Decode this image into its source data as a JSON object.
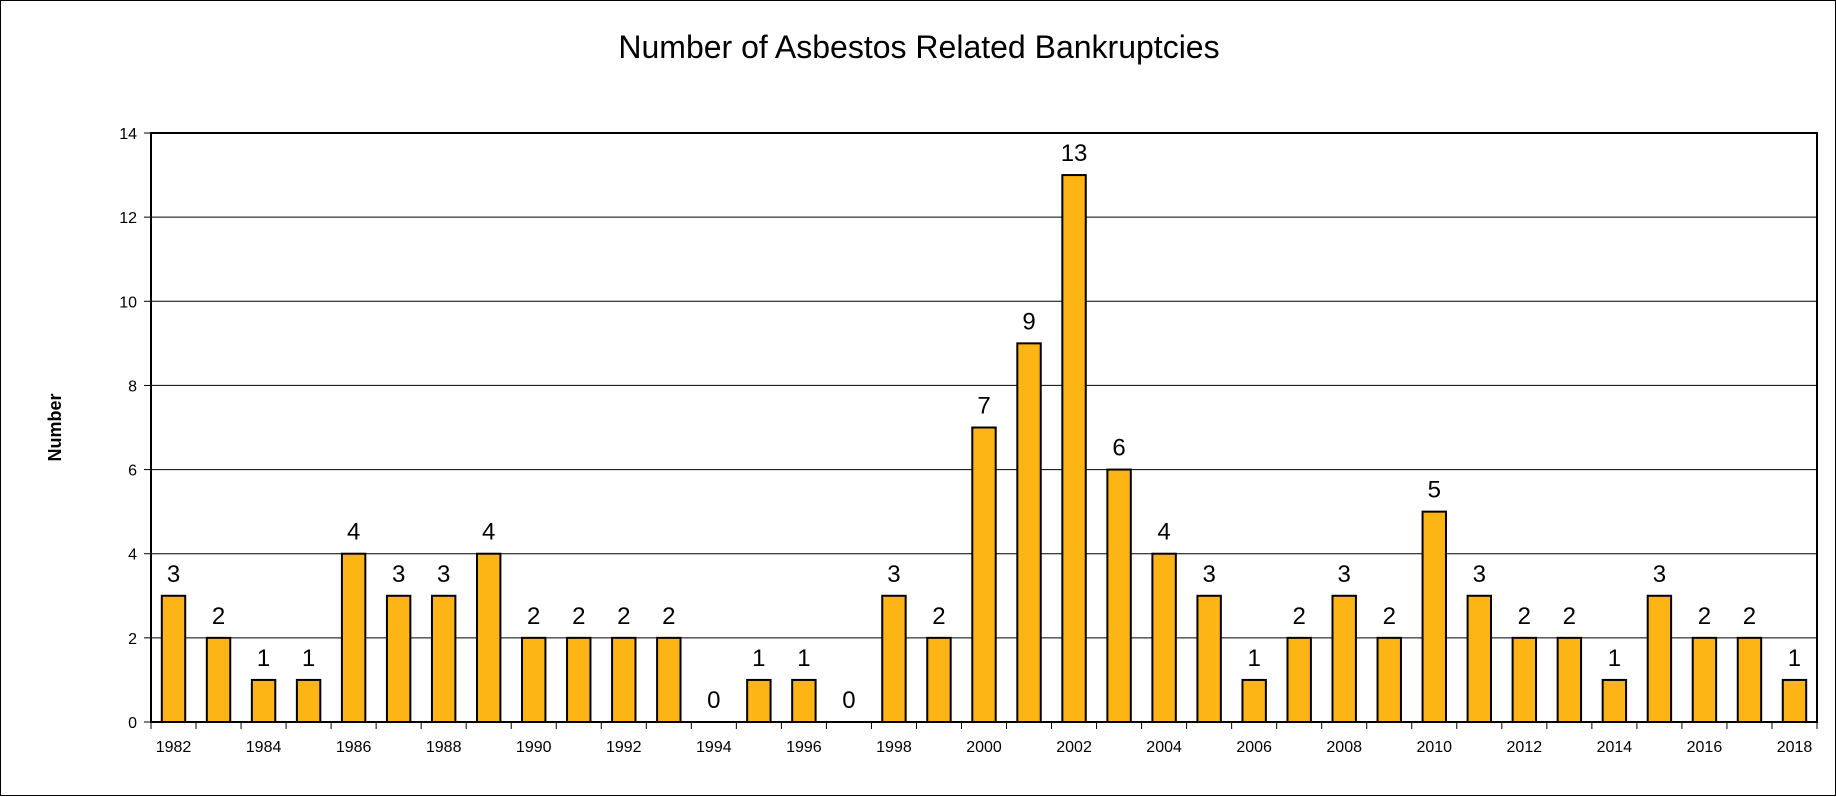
{
  "chart_data": {
    "type": "bar",
    "title": "Number of Asbestos Related Bankruptcies",
    "xlabel": "",
    "ylabel": "Number",
    "ylim": [
      0,
      14
    ],
    "yticks": [
      0,
      2,
      4,
      6,
      8,
      10,
      12,
      14
    ],
    "grid": true,
    "legend": "none",
    "bar_color": "#FDB515",
    "categories": [
      "1982",
      "1983",
      "1984",
      "1985",
      "1986",
      "1987",
      "1988",
      "1989",
      "1990",
      "1991",
      "1992",
      "1993",
      "1994",
      "1995",
      "1996",
      "1997",
      "1998",
      "1999",
      "2000",
      "2001",
      "2002",
      "2003",
      "2004",
      "2005",
      "2006",
      "2007",
      "2008",
      "2009",
      "2010",
      "2011",
      "2012",
      "2013",
      "2014",
      "2015",
      "2016",
      "2017",
      "2018"
    ],
    "values": [
      3,
      2,
      1,
      1,
      4,
      3,
      3,
      4,
      2,
      2,
      2,
      2,
      0,
      1,
      1,
      0,
      3,
      2,
      7,
      9,
      13,
      6,
      4,
      3,
      1,
      2,
      3,
      2,
      5,
      3,
      2,
      2,
      1,
      3,
      2,
      2,
      1
    ],
    "x_tick_labels": [
      "1982",
      "1984",
      "1986",
      "1988",
      "1990",
      "1992",
      "1994",
      "1996",
      "1998",
      "2000",
      "2002",
      "2004",
      "2006",
      "2008",
      "2010",
      "2012",
      "2014",
      "2016",
      "2018"
    ]
  }
}
